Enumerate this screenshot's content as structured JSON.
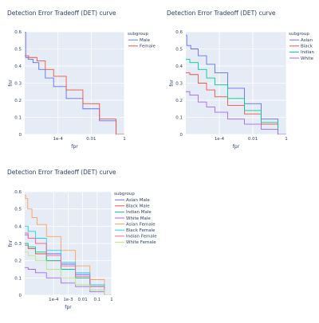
{
  "chart_data": [
    {
      "type": "line",
      "title": "Detection Error Tradeoff (DET) curve",
      "xlabel": "fpr",
      "ylabel": "fnr",
      "x_scale": "log",
      "xlim": [
        1e-06,
        1
      ],
      "ylim": [
        0,
        0.6
      ],
      "x_ticks": [
        {
          "value": 0.0001,
          "label": "1e-4"
        },
        {
          "value": 0.01,
          "label": "0.01"
        },
        {
          "value": 1,
          "label": "1"
        }
      ],
      "y_ticks": [
        0,
        0.1,
        0.2,
        0.3,
        0.4,
        0.5,
        0.6
      ],
      "grid": true,
      "legend_title": "subgroup",
      "legend_position": "top-right",
      "series": [
        {
          "name": "Male",
          "color": "#636efa",
          "points": [
            [
              1e-06,
              0.6
            ],
            [
              1.3e-06,
              0.45
            ],
            [
              2e-06,
              0.44
            ],
            [
              5e-06,
              0.42
            ],
            [
              1e-05,
              0.38
            ],
            [
              3e-05,
              0.33
            ],
            [
              0.0001,
              0.28
            ],
            [
              0.001,
              0.21
            ],
            [
              0.01,
              0.15
            ],
            [
              0.1,
              0.08
            ],
            [
              1,
              0.0
            ]
          ]
        },
        {
          "name": "Female",
          "color": "#ef553b",
          "points": [
            [
              1e-06,
              0.46
            ],
            [
              3e-06,
              0.45
            ],
            [
              1e-05,
              0.43
            ],
            [
              3e-05,
              0.38
            ],
            [
              0.0001,
              0.34
            ],
            [
              0.001,
              0.26
            ],
            [
              0.01,
              0.18
            ],
            [
              0.1,
              0.09
            ],
            [
              1,
              0.0
            ]
          ]
        }
      ]
    },
    {
      "type": "line",
      "title": "Detection Error Tradeoff (DET) curve",
      "xlabel": "fpr",
      "ylabel": "fnr",
      "x_scale": "log",
      "xlim": [
        1e-06,
        1
      ],
      "ylim": [
        0,
        0.6
      ],
      "x_ticks": [
        {
          "value": 0.0001,
          "label": "1e-4"
        },
        {
          "value": 0.01,
          "label": "0.01"
        },
        {
          "value": 1,
          "label": "1"
        }
      ],
      "y_ticks": [
        0,
        0.1,
        0.2,
        0.3,
        0.4,
        0.5,
        0.6
      ],
      "grid": true,
      "legend_title": "subgroup",
      "legend_position": "top-right",
      "series": [
        {
          "name": "Asian",
          "color": "#636efa",
          "points": [
            [
              1e-06,
              0.58
            ],
            [
              1.3e-06,
              0.52
            ],
            [
              3e-06,
              0.5
            ],
            [
              1e-05,
              0.46
            ],
            [
              3e-05,
              0.41
            ],
            [
              0.0001,
              0.36
            ],
            [
              0.001,
              0.27
            ],
            [
              0.01,
              0.18
            ],
            [
              0.1,
              0.09
            ],
            [
              1,
              0.0
            ]
          ]
        },
        {
          "name": "Black",
          "color": "#ef553b",
          "points": [
            [
              1e-06,
              0.36
            ],
            [
              3e-06,
              0.35
            ],
            [
              1e-05,
              0.3
            ],
            [
              3e-05,
              0.26
            ],
            [
              0.0001,
              0.22
            ],
            [
              0.001,
              0.17
            ],
            [
              0.01,
              0.12
            ],
            [
              0.1,
              0.06
            ],
            [
              1,
              0.0
            ]
          ]
        },
        {
          "name": "Indian",
          "color": "#00cc96",
          "points": [
            [
              1e-06,
              0.44
            ],
            [
              3e-06,
              0.42
            ],
            [
              1e-05,
              0.38
            ],
            [
              3e-05,
              0.33
            ],
            [
              0.0001,
              0.29
            ],
            [
              0.001,
              0.21
            ],
            [
              0.01,
              0.14
            ],
            [
              0.1,
              0.07
            ],
            [
              1,
              0.0
            ]
          ]
        },
        {
          "name": "White",
          "color": "#ab63fa",
          "points": [
            [
              1e-06,
              0.25
            ],
            [
              3e-06,
              0.23
            ],
            [
              1e-05,
              0.19
            ],
            [
              3e-05,
              0.16
            ],
            [
              0.0001,
              0.13
            ],
            [
              0.001,
              0.09
            ],
            [
              0.01,
              0.06
            ],
            [
              0.1,
              0.03
            ],
            [
              1,
              0.0
            ]
          ]
        }
      ]
    },
    {
      "type": "line",
      "title": "Detection Error Tradeoff (DET) curve",
      "xlabel": "fpr",
      "ylabel": "fnr",
      "x_scale": "log",
      "xlim": [
        1e-06,
        1
      ],
      "ylim": [
        0,
        0.6
      ],
      "x_ticks": [
        {
          "value": 0.0001,
          "label": "1e-4"
        },
        {
          "value": 0.001,
          "label": "1e-3"
        },
        {
          "value": 0.01,
          "label": "0.01"
        },
        {
          "value": 0.1,
          "label": "0.1"
        },
        {
          "value": 1,
          "label": "1"
        }
      ],
      "y_ticks": [
        0,
        0.1,
        0.2,
        0.3,
        0.4,
        0.5,
        0.6
      ],
      "grid": true,
      "legend_title": "subgroup",
      "legend_position": "top-right",
      "series": [
        {
          "name": "Asian Male",
          "color": "#636efa",
          "points": [
            [
              1e-06,
              0.35
            ],
            [
              3e-06,
              0.33
            ],
            [
              1e-05,
              0.3
            ],
            [
              0.0001,
              0.24
            ],
            [
              0.001,
              0.18
            ],
            [
              0.01,
              0.12
            ],
            [
              0.1,
              0.06
            ],
            [
              1,
              0.0
            ]
          ]
        },
        {
          "name": "Black Male",
          "color": "#ef553b",
          "points": [
            [
              1e-06,
              0.29
            ],
            [
              3e-06,
              0.27
            ],
            [
              1e-05,
              0.24
            ],
            [
              0.0001,
              0.2
            ],
            [
              0.001,
              0.15
            ],
            [
              0.01,
              0.1
            ],
            [
              0.1,
              0.05
            ],
            [
              1,
              0.0
            ]
          ]
        },
        {
          "name": "Indian Male",
          "color": "#00cc96",
          "points": [
            [
              1e-06,
              0.3
            ],
            [
              3e-06,
              0.28
            ],
            [
              1e-05,
              0.25
            ],
            [
              0.0001,
              0.2
            ],
            [
              0.001,
              0.15
            ],
            [
              0.01,
              0.1
            ],
            [
              0.1,
              0.05
            ],
            [
              1,
              0.0
            ]
          ]
        },
        {
          "name": "White Male",
          "color": "#ab63fa",
          "points": [
            [
              1e-06,
              0.16
            ],
            [
              3e-06,
              0.15
            ],
            [
              1e-05,
              0.13
            ],
            [
              0.0001,
              0.1
            ],
            [
              0.001,
              0.07
            ],
            [
              0.01,
              0.05
            ],
            [
              0.1,
              0.02
            ],
            [
              1,
              0.0
            ]
          ]
        },
        {
          "name": "Asian Female",
          "color": "#ffa15a",
          "points": [
            [
              1e-06,
              0.58
            ],
            [
              1.3e-06,
              0.56
            ],
            [
              2e-06,
              0.5
            ],
            [
              5e-06,
              0.45
            ],
            [
              1e-05,
              0.41
            ],
            [
              0.0001,
              0.34
            ],
            [
              0.001,
              0.26
            ],
            [
              0.01,
              0.17
            ],
            [
              0.1,
              0.09
            ],
            [
              1,
              0.0
            ]
          ]
        },
        {
          "name": "Black Female",
          "color": "#19d3f3",
          "points": [
            [
              1e-06,
              0.4
            ],
            [
              3e-06,
              0.37
            ],
            [
              1e-05,
              0.33
            ],
            [
              0.0001,
              0.26
            ],
            [
              0.001,
              0.19
            ],
            [
              0.01,
              0.13
            ],
            [
              0.1,
              0.06
            ],
            [
              1,
              0.0
            ]
          ]
        },
        {
          "name": "Indian Female",
          "color": "#ff6692",
          "points": [
            [
              1e-06,
              0.36
            ],
            [
              3e-06,
              0.33
            ],
            [
              1e-05,
              0.3
            ],
            [
              0.0001,
              0.23
            ],
            [
              0.001,
              0.17
            ],
            [
              0.01,
              0.11
            ],
            [
              0.1,
              0.05
            ],
            [
              1,
              0.0
            ]
          ]
        },
        {
          "name": "White Female",
          "color": "#b6e880",
          "points": [
            [
              1e-06,
              0.25
            ],
            [
              3e-06,
              0.23
            ],
            [
              1e-05,
              0.2
            ],
            [
              0.0001,
              0.15
            ],
            [
              0.001,
              0.1
            ],
            [
              0.01,
              0.06
            ],
            [
              0.1,
              0.03
            ],
            [
              1,
              0.0
            ]
          ]
        }
      ]
    }
  ]
}
